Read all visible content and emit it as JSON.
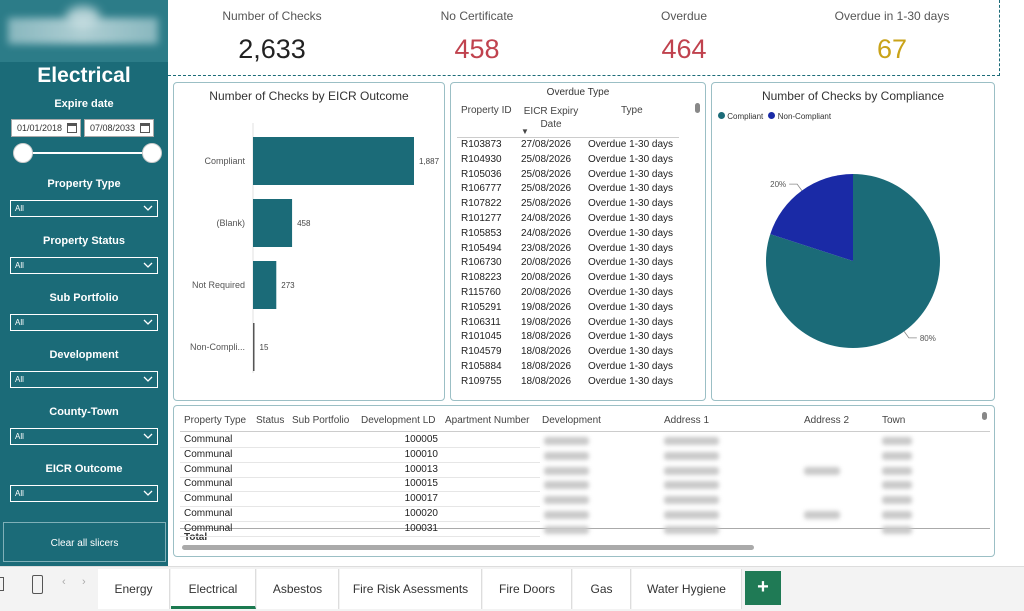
{
  "sidebar": {
    "title": "Electrical",
    "expire_label": "Expire date",
    "date_from": "01/01/2018",
    "date_to": "07/08/2033",
    "filters": [
      {
        "label": "Property Type",
        "value": "All"
      },
      {
        "label": "Property Status",
        "value": "All"
      },
      {
        "label": "Sub Portfolio",
        "value": "All"
      },
      {
        "label": "Development",
        "value": "All"
      },
      {
        "label": "County-Town",
        "value": "All"
      },
      {
        "label": "EICR Outcome",
        "value": "All"
      }
    ],
    "clear_button": "Clear all slicers"
  },
  "kpis": [
    {
      "label": "Number of Checks",
      "value": "2,633",
      "color": "#222222"
    },
    {
      "label": "No Certificate",
      "value": "458",
      "color": "#c0424e"
    },
    {
      "label": "Overdue",
      "value": "464",
      "color": "#c0424e"
    },
    {
      "label": "Overdue in 1-30 days",
      "value": "67",
      "color": "#c9a319"
    }
  ],
  "eicr_chart": {
    "title": "Number of Checks by EICR Outcome",
    "chart_data": {
      "type": "bar",
      "orientation": "horizontal",
      "categories": [
        "Compliant",
        "(Blank)",
        "Not Required",
        "Non-Compli..."
      ],
      "values": [
        1887,
        458,
        273,
        15
      ],
      "color": "#1b6b78"
    }
  },
  "overdue_table": {
    "title": "Overdue Type",
    "headers": [
      "Property ID",
      "EICR Expiry Date",
      "Type"
    ],
    "rows": [
      [
        "R103873",
        "27/08/2026",
        "Overdue 1-30 days"
      ],
      [
        "R104930",
        "25/08/2026",
        "Overdue 1-30 days"
      ],
      [
        "R105036",
        "25/08/2026",
        "Overdue 1-30 days"
      ],
      [
        "R106777",
        "25/08/2026",
        "Overdue 1-30 days"
      ],
      [
        "R107822",
        "25/08/2026",
        "Overdue 1-30 days"
      ],
      [
        "R101277",
        "24/08/2026",
        "Overdue 1-30 days"
      ],
      [
        "R105853",
        "24/08/2026",
        "Overdue 1-30 days"
      ],
      [
        "R105494",
        "23/08/2026",
        "Overdue 1-30 days"
      ],
      [
        "R106730",
        "20/08/2026",
        "Overdue 1-30 days"
      ],
      [
        "R108223",
        "20/08/2026",
        "Overdue 1-30 days"
      ],
      [
        "R115760",
        "20/08/2026",
        "Overdue 1-30 days"
      ],
      [
        "R105291",
        "19/08/2026",
        "Overdue 1-30 days"
      ],
      [
        "R106311",
        "19/08/2026",
        "Overdue 1-30 days"
      ],
      [
        "R101045",
        "18/08/2026",
        "Overdue 1-30 days"
      ],
      [
        "R104579",
        "18/08/2026",
        "Overdue 1-30 days"
      ],
      [
        "R105884",
        "18/08/2026",
        "Overdue 1-30 days"
      ],
      [
        "R109755",
        "18/08/2026",
        "Overdue 1-30 days"
      ]
    ]
  },
  "compliance_chart": {
    "title": "Number of Checks by Compliance",
    "legend": [
      "Compliant",
      "Non-Compliant"
    ],
    "chart_data": {
      "type": "pie",
      "labels": [
        "Compliant",
        "Non-Compliant"
      ],
      "values": [
        80,
        20
      ],
      "value_labels": [
        "80%",
        "20%"
      ],
      "colors": [
        "#1b6b78",
        "#1a2aa6"
      ]
    }
  },
  "bottom_table": {
    "headers": [
      "Property Type",
      "Status",
      "Sub Portfolio",
      "Development LD",
      "Apartment Number",
      "Development",
      "Address 1",
      "Address 2",
      "Town"
    ],
    "rows": [
      {
        "type": "Communal",
        "dev_ld": "100005"
      },
      {
        "type": "Communal",
        "dev_ld": "100010"
      },
      {
        "type": "Communal",
        "dev_ld": "100013"
      },
      {
        "type": "Communal",
        "dev_ld": "100015"
      },
      {
        "type": "Communal",
        "dev_ld": "100017"
      },
      {
        "type": "Communal",
        "dev_ld": "100020"
      },
      {
        "type": "Communal",
        "dev_ld": "100031"
      }
    ],
    "total_label": "Total"
  },
  "tabs": {
    "items": [
      "Energy",
      "Electrical",
      "Asbestos",
      "Fire Risk Asessments",
      "Fire Doors",
      "Gas",
      "Water Hygiene"
    ],
    "active": "Electrical",
    "add_label": "+"
  }
}
